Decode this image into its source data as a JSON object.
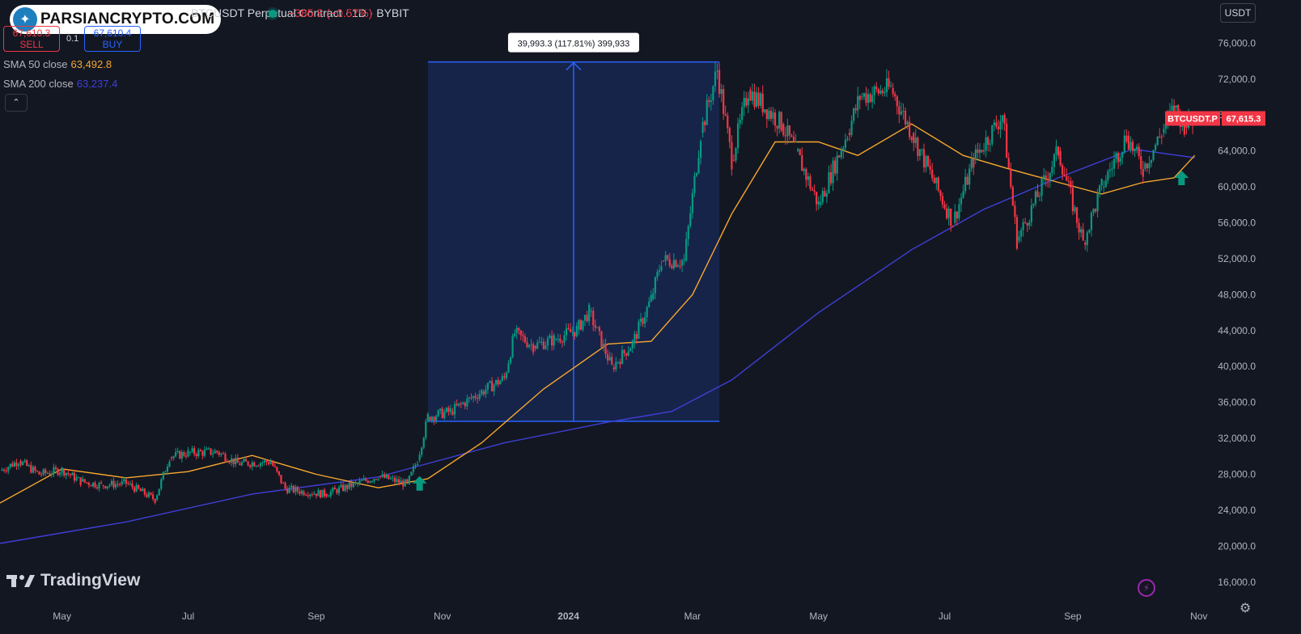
{
  "header": {
    "brand_text": "PARSIANCRYPTO.COM",
    "symbol": "BTCUSDT Perpetual Contract · 1D · BYBIT",
    "change": "−385.8 (−0.57%)",
    "sell_price": "67,610.3",
    "sell_label": "SELL",
    "quantity": "0.1",
    "buy_price": "67,610.4",
    "buy_label": "BUY",
    "currency": "USDT"
  },
  "indicators": [
    {
      "label": "SMA 50 close",
      "value": "63,492.8",
      "color": "#f7a72d"
    },
    {
      "label": "SMA 200 close",
      "value": "63,237.4",
      "color": "#3f3fd8"
    }
  ],
  "measure_label": "39,993.3 (117.81%) 399,933",
  "price_tag": {
    "symbol": "BTCUSDT.P",
    "price": "67,615.3",
    "color": "#f23645"
  },
  "brand_footer": "TradingView",
  "colors": {
    "background": "#131722",
    "up": "#089981",
    "down": "#f23645",
    "measure": "#2962ff",
    "sma50": "#f7a72d",
    "sma200": "#3f3fd8"
  },
  "chart_data": {
    "type": "line",
    "title": "BTCUSDT Perpetual Contract · 1D · BYBIT",
    "x_ticks": [
      "May",
      "Jul",
      "Sep",
      "Nov",
      "2024",
      "Mar",
      "May",
      "Jul",
      "Sep",
      "Nov"
    ],
    "y_ticks": [
      16000,
      20000,
      24000,
      28000,
      32000,
      36000,
      40000,
      44000,
      48000,
      52000,
      56000,
      60000,
      64000,
      68000,
      72000,
      76000
    ],
    "y_tick_labels": [
      "16,000.0",
      "20,000.0",
      "24,000.0",
      "28,000.0",
      "32,000.0",
      "36,000.0",
      "40,000.0",
      "44,000.0",
      "48,000.0",
      "52,000.0",
      "56,000.0",
      "60,000.0",
      "64,000.0",
      "68,000.0",
      "72,000.0",
      "76,000.0"
    ],
    "ylim": [
      14000,
      79000
    ],
    "xlim": [
      "2023-04-01",
      "2024-11-05"
    ],
    "series": [
      {
        "name": "BTCUSDT.P",
        "points": [
          [
            "2023-04-01",
            28400
          ],
          [
            "2023-04-10",
            29500
          ],
          [
            "2023-04-20",
            28000
          ],
          [
            "2023-05-01",
            28500
          ],
          [
            "2023-05-10",
            27200
          ],
          [
            "2023-05-20",
            26800
          ],
          [
            "2023-06-01",
            27000
          ],
          [
            "2023-06-15",
            25200
          ],
          [
            "2023-06-22",
            29900
          ],
          [
            "2023-07-01",
            30400
          ],
          [
            "2023-07-15",
            30500
          ],
          [
            "2023-07-25",
            29200
          ],
          [
            "2023-08-10",
            29400
          ],
          [
            "2023-08-17",
            26400
          ],
          [
            "2023-08-25",
            26100
          ],
          [
            "2023-09-05",
            25800
          ],
          [
            "2023-09-20",
            26900
          ],
          [
            "2023-10-01",
            27800
          ],
          [
            "2023-10-15",
            26900
          ],
          [
            "2023-10-20",
            29600
          ],
          [
            "2023-10-25",
            34400
          ],
          [
            "2023-11-05",
            35000
          ],
          [
            "2023-11-20",
            37200
          ],
          [
            "2023-12-01",
            38700
          ],
          [
            "2023-12-06",
            43700
          ],
          [
            "2023-12-15",
            42300
          ],
          [
            "2023-12-25",
            43000
          ],
          [
            "2024-01-05",
            44100
          ],
          [
            "2024-01-11",
            46100
          ],
          [
            "2024-01-22",
            39900
          ],
          [
            "2024-02-01",
            42600
          ],
          [
            "2024-02-10",
            47500
          ],
          [
            "2024-02-15",
            51800
          ],
          [
            "2024-02-26",
            51800
          ],
          [
            "2024-03-05",
            66000
          ],
          [
            "2024-03-13",
            73000
          ],
          [
            "2024-03-20",
            63000
          ],
          [
            "2024-03-28",
            70800
          ],
          [
            "2024-04-13",
            67000
          ],
          [
            "2024-04-20",
            64000
          ],
          [
            "2024-05-01",
            58000
          ],
          [
            "2024-05-15",
            66000
          ],
          [
            "2024-05-21",
            70000
          ],
          [
            "2024-06-05",
            71000
          ],
          [
            "2024-06-15",
            66000
          ],
          [
            "2024-06-25",
            61000
          ],
          [
            "2024-07-05",
            56000
          ],
          [
            "2024-07-15",
            63000
          ],
          [
            "2024-07-29",
            68000
          ],
          [
            "2024-08-05",
            54000
          ],
          [
            "2024-08-15",
            59000
          ],
          [
            "2024-08-25",
            64000
          ],
          [
            "2024-09-06",
            53800
          ],
          [
            "2024-09-15",
            60000
          ],
          [
            "2024-09-27",
            65700
          ],
          [
            "2024-10-05",
            62000
          ],
          [
            "2024-10-14",
            66000
          ],
          [
            "2024-10-20",
            68800
          ],
          [
            "2024-10-25",
            67000
          ],
          [
            "2024-10-30",
            67615
          ]
        ]
      },
      {
        "name": "SMA 50",
        "points": [
          [
            "2023-04-01",
            24800
          ],
          [
            "2023-05-01",
            28600
          ],
          [
            "2023-06-01",
            27600
          ],
          [
            "2023-07-01",
            28300
          ],
          [
            "2023-08-01",
            30100
          ],
          [
            "2023-09-01",
            28000
          ],
          [
            "2023-10-01",
            26500
          ],
          [
            "2023-10-25",
            27500
          ],
          [
            "2023-11-20",
            31500
          ],
          [
            "2023-12-20",
            37500
          ],
          [
            "2024-01-20",
            42500
          ],
          [
            "2024-02-10",
            42800
          ],
          [
            "2024-03-01",
            48000
          ],
          [
            "2024-03-20",
            57000
          ],
          [
            "2024-04-10",
            65000
          ],
          [
            "2024-05-01",
            65000
          ],
          [
            "2024-05-20",
            63500
          ],
          [
            "2024-06-15",
            67000
          ],
          [
            "2024-07-10",
            63500
          ],
          [
            "2024-08-01",
            62000
          ],
          [
            "2024-08-25",
            60500
          ],
          [
            "2024-09-15",
            59200
          ],
          [
            "2024-10-05",
            60500
          ],
          [
            "2024-10-20",
            61000
          ],
          [
            "2024-10-30",
            63493
          ]
        ]
      },
      {
        "name": "SMA 200",
        "points": [
          [
            "2023-04-01",
            20300
          ],
          [
            "2023-06-01",
            22700
          ],
          [
            "2023-08-01",
            25800
          ],
          [
            "2023-10-01",
            27700
          ],
          [
            "2023-12-01",
            31500
          ],
          [
            "2024-01-20",
            33800
          ],
          [
            "2024-02-20",
            35000
          ],
          [
            "2024-03-20",
            38500
          ],
          [
            "2024-05-01",
            46000
          ],
          [
            "2024-06-15",
            53000
          ],
          [
            "2024-07-20",
            57500
          ],
          [
            "2024-08-25",
            61000
          ],
          [
            "2024-09-30",
            64200
          ],
          [
            "2024-10-30",
            63237
          ]
        ]
      }
    ]
  }
}
